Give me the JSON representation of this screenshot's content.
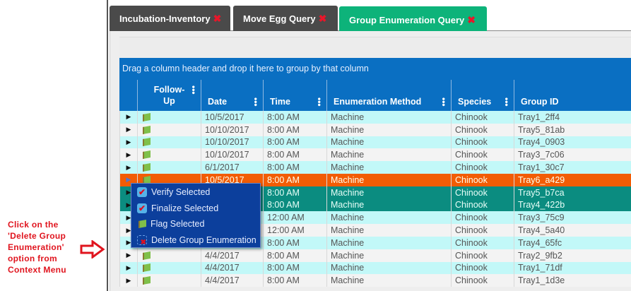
{
  "annotation": {
    "lines": [
      "Click on the",
      "'Delete Group",
      "Enumeration'",
      "option from",
      "Context Menu"
    ]
  },
  "tabs": [
    {
      "label": "Incubation-Inventory",
      "close": "✖"
    },
    {
      "label": "Move Egg Query",
      "close": "✖"
    },
    {
      "label": "Group Enumeration Query",
      "close": "✖",
      "active": true
    }
  ],
  "group_hint": "Drag a column header and drop it here to group by that column",
  "columns": [
    "Follow-Up",
    "Date",
    "Time",
    "Enumeration Method",
    "Species",
    "Group ID"
  ],
  "rows": [
    {
      "date": "10/5/2017",
      "time": "8:00 AM",
      "method": "Machine",
      "species": "Chinook",
      "group": "Tray1_2ff4"
    },
    {
      "date": "10/10/2017",
      "time": "8:00 AM",
      "method": "Machine",
      "species": "Chinook",
      "group": "Tray5_81ab"
    },
    {
      "date": "10/10/2017",
      "time": "8:00 AM",
      "method": "Machine",
      "species": "Chinook",
      "group": "Tray4_0903"
    },
    {
      "date": "10/10/2017",
      "time": "8:00 AM",
      "method": "Machine",
      "species": "Chinook",
      "group": "Tray3_7c06"
    },
    {
      "date": "6/1/2017",
      "time": "8:00 AM",
      "method": "Machine",
      "species": "Chinook",
      "group": "Tray1_30c7"
    },
    {
      "date": "10/5/2017",
      "time": "8:00 AM",
      "method": "Machine",
      "species": "Chinook",
      "group": "Tray6_a429"
    },
    {
      "date": "",
      "time": "8:00 AM",
      "method": "Machine",
      "species": "Chinook",
      "group": "Tray5_b7ca"
    },
    {
      "date": "",
      "time": "8:00 AM",
      "method": "Machine",
      "species": "Chinook",
      "group": "Tray4_422b"
    },
    {
      "date": "",
      "time": "12:00 AM",
      "method": "Machine",
      "species": "Chinook",
      "group": "Tray3_75c9"
    },
    {
      "date": "",
      "time": "12:00 AM",
      "method": "Machine",
      "species": "Chinook",
      "group": "Tray4_5a40"
    },
    {
      "date": "",
      "time": "8:00 AM",
      "method": "Machine",
      "species": "Chinook",
      "group": "Tray4_65fc"
    },
    {
      "date": "4/4/2017",
      "time": "8:00 AM",
      "method": "Machine",
      "species": "Chinook",
      "group": "Tray2_9fb2"
    },
    {
      "date": "4/4/2017",
      "time": "8:00 AM",
      "method": "Machine",
      "species": "Chinook",
      "group": "Tray1_71df"
    },
    {
      "date": "4/4/2017",
      "time": "8:00 AM",
      "method": "Machine",
      "species": "Chinook",
      "group": "Tray1_1d3e"
    }
  ],
  "selected_row": 5,
  "highlighted_rows": [
    6,
    7
  ],
  "context_menu": [
    {
      "label": "Verify Selected",
      "icon": "checkbox-icon"
    },
    {
      "label": "Finalize Selected",
      "icon": "checkbox-icon"
    },
    {
      "label": "Flag Selected",
      "icon": "flag-icon"
    },
    {
      "label": "Delete Group Enumeration",
      "icon": "delete-icon"
    }
  ],
  "colors": {
    "tab_active": "#0db37a",
    "header": "#0a6fc2",
    "selected": "#f25c05",
    "highlight": "#0b8c80",
    "menu": "#0c3f9c",
    "annotation": "#e0141e"
  }
}
